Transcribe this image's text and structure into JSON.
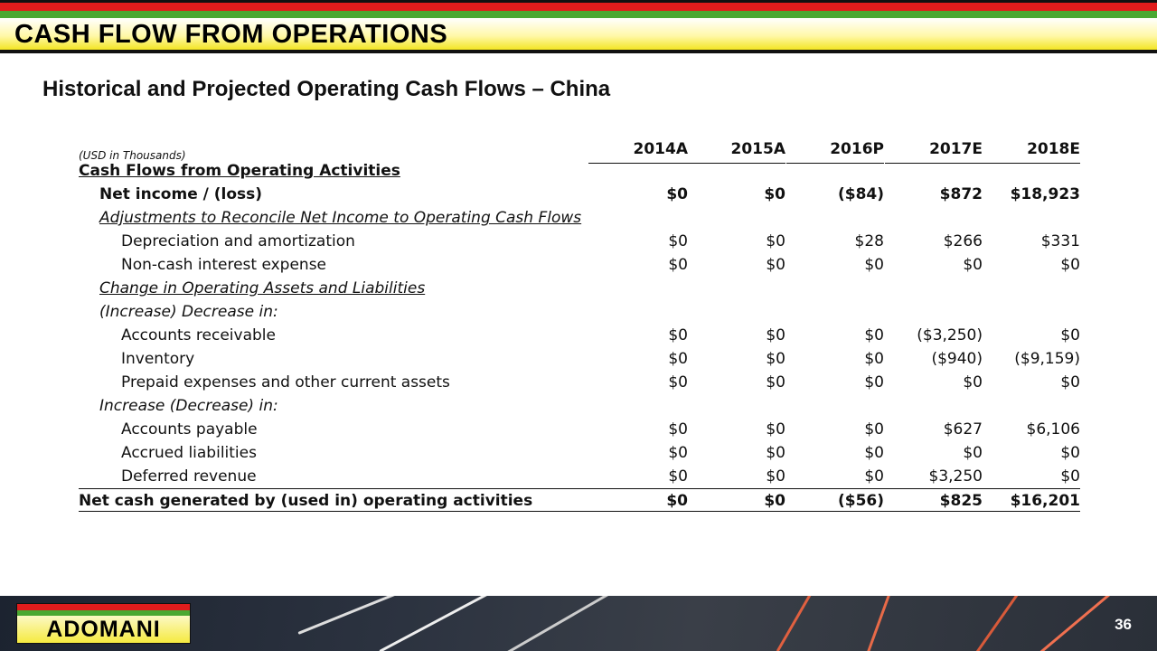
{
  "header": {
    "title": "CASH FLOW FROM OPERATIONS"
  },
  "subtitle": "Historical and Projected Operating Cash Flows – China",
  "table": {
    "units": "(USD in Thousands)",
    "columns": [
      "2014A",
      "2015A",
      "2016P",
      "2017E",
      "2018E"
    ],
    "rows": [
      {
        "label": "Cash Flows from Operating Activities",
        "values": []
      },
      {
        "label": "Net income / (loss)",
        "values": [
          "$0",
          "$0",
          "($84)",
          "$872",
          "$18,923"
        ]
      },
      {
        "label": "Adjustments to Reconcile Net Income to Operating Cash Flows",
        "values": []
      },
      {
        "label": "Depreciation and amortization",
        "values": [
          "$0",
          "$0",
          "$28",
          "$266",
          "$331"
        ]
      },
      {
        "label": "Non-cash interest expense",
        "values": [
          "$0",
          "$0",
          "$0",
          "$0",
          "$0"
        ]
      },
      {
        "label": "Change in Operating Assets and Liabilities",
        "values": []
      },
      {
        "label": "(Increase) Decrease in:",
        "values": []
      },
      {
        "label": "Accounts receivable",
        "values": [
          "$0",
          "$0",
          "$0",
          "($3,250)",
          "$0"
        ]
      },
      {
        "label": "Inventory",
        "values": [
          "$0",
          "$0",
          "$0",
          "($940)",
          "($9,159)"
        ]
      },
      {
        "label": "Prepaid expenses and other current assets",
        "values": [
          "$0",
          "$0",
          "$0",
          "$0",
          "$0"
        ]
      },
      {
        "label": "Increase (Decrease) in:",
        "values": []
      },
      {
        "label": "Accounts payable",
        "values": [
          "$0",
          "$0",
          "$0",
          "$627",
          "$6,106"
        ]
      },
      {
        "label": "Accrued liabilities",
        "values": [
          "$0",
          "$0",
          "$0",
          "$0",
          "$0"
        ]
      },
      {
        "label": "Deferred revenue",
        "values": [
          "$0",
          "$0",
          "$0",
          "$3,250",
          "$0"
        ]
      },
      {
        "label": "Net cash generated by (used in) operating activities",
        "values": [
          "$0",
          "$0",
          "($56)",
          "$825",
          "$16,201"
        ]
      }
    ]
  },
  "footer": {
    "logo": "ADOMANI",
    "page_number": "36"
  }
}
